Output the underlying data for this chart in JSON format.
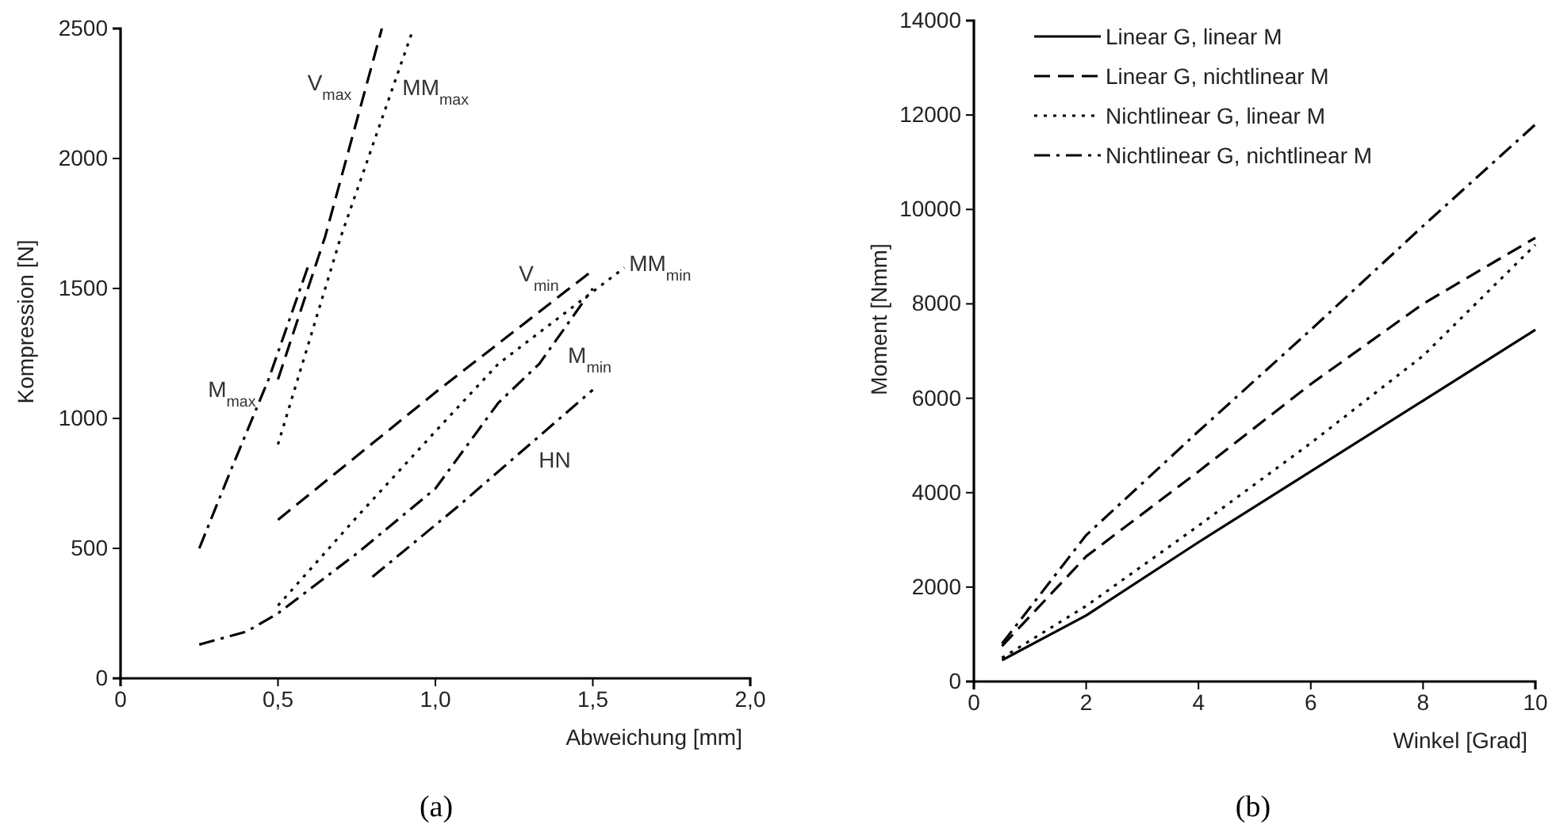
{
  "chart_data": [
    {
      "type": "line",
      "xlabel": "Abweichung [mm]",
      "ylabel": "Kompression [N]",
      "xlim": [
        0,
        2
      ],
      "ylim": [
        0,
        2500
      ],
      "xticks": [
        0,
        {
          "value": 0.5,
          "label": "0,5"
        },
        {
          "value": 1,
          "label": "1,0"
        },
        {
          "value": 1.5,
          "label": "1,5"
        },
        {
          "value": 2,
          "label": "2,0"
        }
      ],
      "yticks": [
        0,
        500,
        1000,
        1500,
        2000,
        2500
      ],
      "grid": false,
      "legend": false,
      "series": [
        {
          "name": "M$_{max}$",
          "color": "#000000",
          "line_style": "dashdot",
          "x": [
            0.25,
            0.35,
            0.47,
            0.6
          ],
          "values": [
            500,
            800,
            1150,
            1600
          ]
        },
        {
          "name": "V$_{max}$",
          "color": "#000000",
          "line_style": "dashed",
          "x": [
            0.5,
            0.65,
            0.83
          ],
          "values": [
            1150,
            1700,
            2500
          ]
        },
        {
          "name": "MM$_{max}$",
          "color": "#000000",
          "line_style": "dotted",
          "x": [
            0.5,
            0.7,
            0.93
          ],
          "values": [
            900,
            1700,
            2500
          ]
        },
        {
          "name": "V$_{min}$",
          "color": "#000000",
          "line_style": "dashed",
          "x": [
            0.5,
            1.0,
            1.5
          ],
          "values": [
            610,
            1100,
            1570
          ]
        },
        {
          "name": "MM$_{min}$",
          "color": "#000000",
          "line_style": "dotted",
          "x": [
            0.5,
            0.75,
            1.0,
            1.2,
            1.6
          ],
          "values": [
            280,
            620,
            950,
            1210,
            1580
          ]
        },
        {
          "name": "M$_{min}$",
          "color": "#000000",
          "line_style": "dashdot",
          "x": [
            0.25,
            0.4,
            0.5,
            0.75,
            1.0,
            1.2,
            1.33,
            1.5
          ],
          "values": [
            130,
            180,
            250,
            480,
            730,
            1060,
            1210,
            1500
          ]
        },
        {
          "name": "HN",
          "color": "#000000",
          "line_style": "dashdot",
          "x": [
            0.8,
            1.08,
            1.5
          ],
          "values": [
            390,
            670,
            1110
          ]
        }
      ],
      "annotations": [
        "(a)"
      ]
    },
    {
      "type": "line",
      "xlabel": "Winkel [Grad]",
      "ylabel": "Moment [Nmm]",
      "xlim": [
        0,
        10
      ],
      "ylim": [
        0,
        14000
      ],
      "xticks": [
        0,
        2,
        4,
        6,
        8,
        10
      ],
      "yticks": [
        0,
        2000,
        4000,
        6000,
        8000,
        10000,
        12000,
        14000
      ],
      "grid": false,
      "legend": "top left",
      "series": [
        {
          "name": "Linear G, linear M",
          "color": "#000000",
          "line_style": "solid",
          "x": [
            0.5,
            2,
            4,
            6,
            8,
            10
          ],
          "values": [
            450,
            1400,
            2950,
            4450,
            5950,
            7450
          ]
        },
        {
          "name": "Linear G, nichtlinear M",
          "color": "#000000",
          "line_style": "dashed",
          "x": [
            0.5,
            2,
            4,
            6,
            8,
            10
          ],
          "values": [
            750,
            2650,
            4450,
            6300,
            8000,
            9400
          ]
        },
        {
          "name": "Nichtlinear G, linear M",
          "color": "#000000",
          "line_style": "dotted",
          "x": [
            0.5,
            2,
            4,
            6,
            8,
            10
          ],
          "values": [
            500,
            1600,
            3300,
            5050,
            6900,
            9250
          ]
        },
        {
          "name": "Nichtlinear G, nichtlinear M",
          "color": "#000000",
          "line_style": "dashdot",
          "x": [
            0.5,
            2,
            4,
            6,
            8,
            10
          ],
          "values": [
            800,
            3100,
            5300,
            7450,
            9650,
            11800
          ]
        }
      ],
      "annotations": [
        "(b)"
      ]
    }
  ]
}
